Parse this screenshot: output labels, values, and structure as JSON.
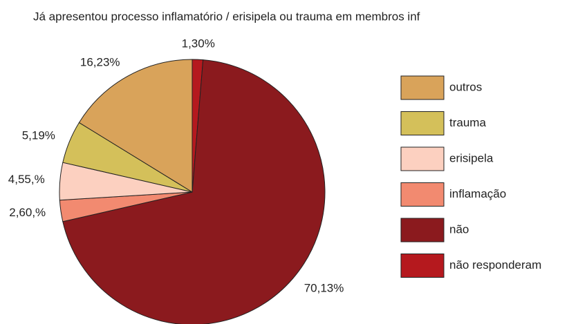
{
  "chart_data": {
    "type": "pie",
    "title": "Já apresentou processo inflamatório / erisipela ou trauma em membros inf",
    "categories": [
      "outros",
      "trauma",
      "erisipela",
      "inflamação",
      "não",
      "não responderam"
    ],
    "values": [
      16.23,
      5.19,
      4.55,
      2.6,
      70.13,
      1.3
    ],
    "value_labels": [
      "16,23%",
      "5,19%",
      "4,55,%",
      "2,60,%",
      "70,13%",
      "1,30%"
    ],
    "colors": [
      "#d9a35a",
      "#d4c05a",
      "#fcd0c0",
      "#f28a70",
      "#8b1a1e",
      "#b5191e"
    ],
    "legend": "right"
  }
}
